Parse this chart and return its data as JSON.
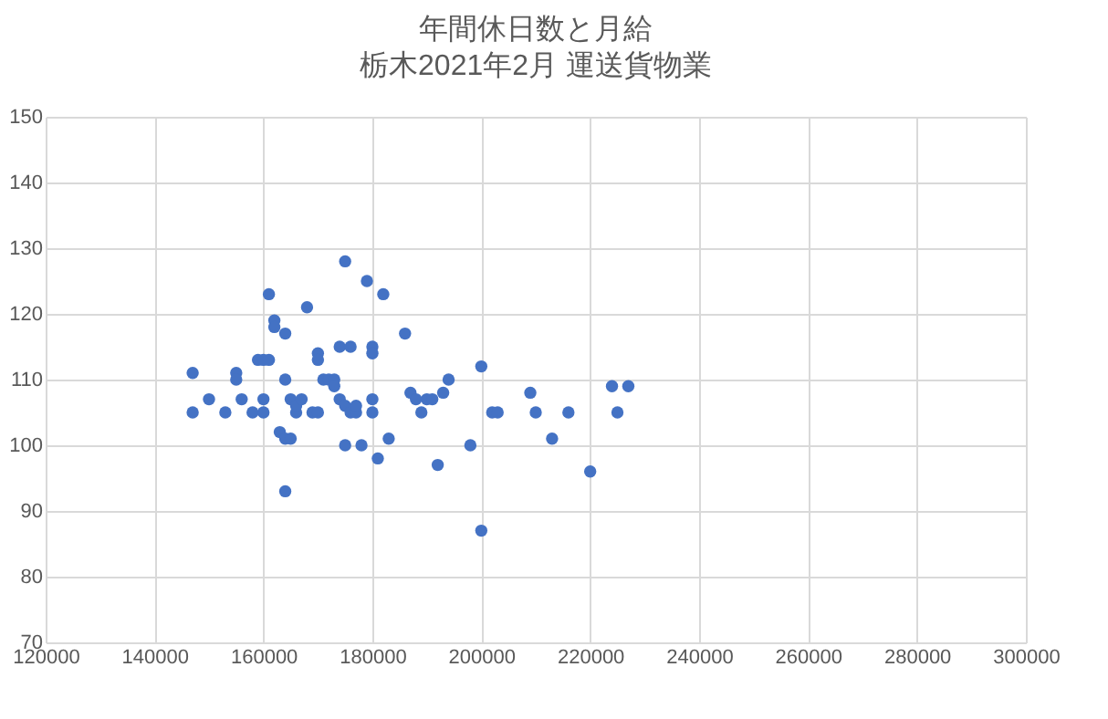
{
  "chart_data": {
    "type": "scatter",
    "title": "年間休日数と月給",
    "subtitle": "栃木2021年2月  運送貨物業",
    "x": [
      147000,
      147000,
      150000,
      153000,
      155000,
      155000,
      156000,
      158000,
      159000,
      160000,
      160000,
      160000,
      161000,
      161000,
      162000,
      162000,
      163000,
      164000,
      164000,
      164000,
      164000,
      165000,
      165000,
      166000,
      166000,
      167000,
      168000,
      169000,
      170000,
      170000,
      170000,
      171000,
      172000,
      173000,
      173000,
      174000,
      174000,
      175000,
      175000,
      175000,
      176000,
      176000,
      177000,
      177000,
      178000,
      179000,
      180000,
      180000,
      180000,
      180000,
      181000,
      182000,
      183000,
      186000,
      187000,
      188000,
      189000,
      190000,
      191000,
      192000,
      193000,
      194000,
      198000,
      200000,
      200000,
      202000,
      203000,
      209000,
      210000,
      213000,
      216000,
      220000,
      224000,
      225000,
      227000
    ],
    "series": [
      {
        "color": "#4472c4",
        "values": [
          111,
          105,
          107,
          105,
          111,
          110,
          107,
          105,
          113,
          113,
          105,
          107,
          113,
          123,
          119,
          118,
          102,
          117,
          110,
          101,
          93,
          107,
          101,
          105,
          106,
          107,
          121,
          105,
          114,
          113,
          105,
          110,
          110,
          110,
          109,
          115,
          107,
          100,
          106,
          128,
          115,
          105,
          105,
          106,
          100,
          125,
          115,
          114,
          107,
          105,
          98,
          123,
          101,
          117,
          108,
          107,
          105,
          107,
          107,
          97,
          108,
          110,
          100,
          112,
          87,
          105,
          105,
          108,
          105,
          101,
          105,
          96,
          109,
          105,
          109
        ]
      }
    ],
    "xlim": [
      120000,
      300000
    ],
    "xticks": [
      120000,
      140000,
      160000,
      180000,
      200000,
      220000,
      240000,
      260000,
      280000,
      300000
    ],
    "ylim": [
      70,
      150
    ],
    "yticks": [
      70,
      80,
      90,
      100,
      110,
      120,
      130,
      140,
      150
    ],
    "grid": true,
    "marker": "circle",
    "legend": false
  }
}
